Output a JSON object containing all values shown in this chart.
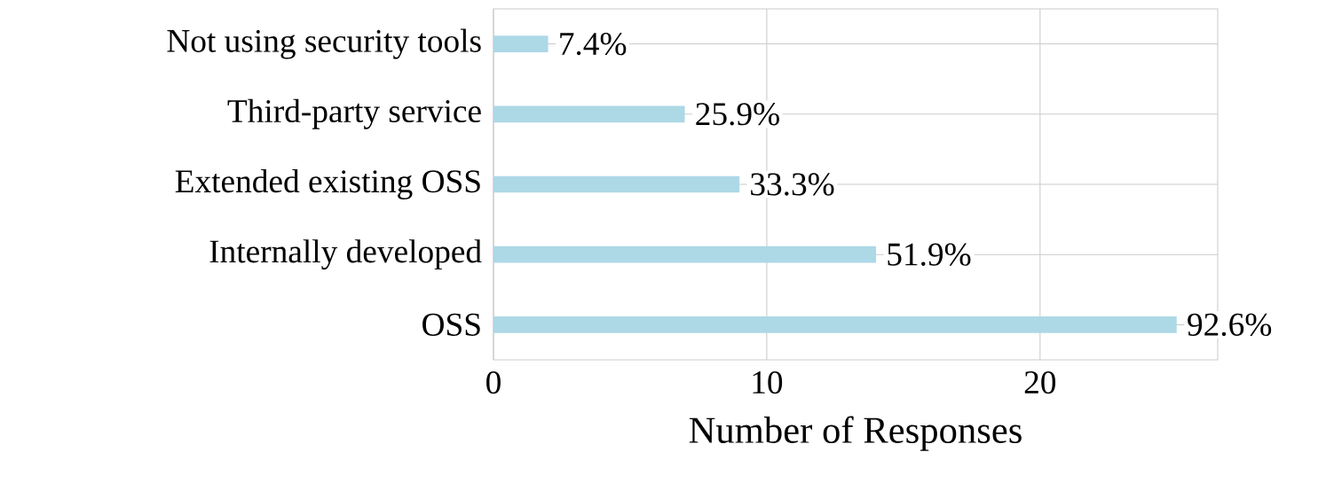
{
  "chart_data": {
    "type": "bar",
    "orientation": "horizontal",
    "xlabel": "Number of Responses",
    "categories": [
      "Not using security tools",
      "Third-party service",
      "Extended existing OSS",
      "Internally developed",
      "OSS"
    ],
    "values": [
      2,
      7,
      9,
      14,
      25
    ],
    "annotations": [
      {
        "text": "7.4%",
        "x": 2,
        "y": "Not using security tools"
      },
      {
        "text": "25.9%",
        "x": 7,
        "y": "Third-party service"
      },
      {
        "text": "33.3%",
        "x": 9,
        "y": "Extended existing OSS"
      },
      {
        "text": "51.9%",
        "x": 14,
        "y": "Internally developed"
      },
      {
        "text": "92.6%",
        "x": 25,
        "y": "OSS"
      }
    ],
    "color": "#add8e6",
    "xlim": [
      0,
      26.5
    ],
    "xticks": [
      0,
      10,
      20
    ],
    "grid": true
  }
}
